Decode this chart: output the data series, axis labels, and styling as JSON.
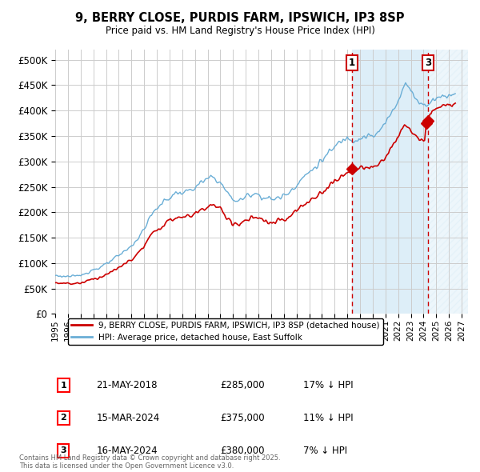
{
  "title1": "9, BERRY CLOSE, PURDIS FARM, IPSWICH, IP3 8SP",
  "title2": "Price paid vs. HM Land Registry's House Price Index (HPI)",
  "ylim": [
    0,
    520000
  ],
  "xlim_start": 1995.0,
  "xlim_end": 2027.5,
  "yticks": [
    0,
    50000,
    100000,
    150000,
    200000,
    250000,
    300000,
    350000,
    400000,
    450000,
    500000
  ],
  "ytick_labels": [
    "£0",
    "£50K",
    "£100K",
    "£150K",
    "£200K",
    "£250K",
    "£300K",
    "£350K",
    "£400K",
    "£450K",
    "£500K"
  ],
  "xticks": [
    1995,
    1996,
    1997,
    1998,
    1999,
    2000,
    2001,
    2002,
    2003,
    2004,
    2005,
    2006,
    2007,
    2008,
    2009,
    2010,
    2011,
    2012,
    2013,
    2014,
    2015,
    2016,
    2017,
    2018,
    2019,
    2020,
    2021,
    2022,
    2023,
    2024,
    2025,
    2026,
    2027
  ],
  "hpi_color": "#6aaed6",
  "sale_color": "#cc0000",
  "marker1_x": 2018.38,
  "marker1_y": 285000,
  "marker2_x": 2024.21,
  "marker2_y": 375000,
  "marker3_x": 2024.38,
  "marker3_y": 380000,
  "vline1_x": 2018.38,
  "vline3_x": 2024.38,
  "shade1_start": 2018.38,
  "shade1_end": 2024.38,
  "shade2_start": 2024.38,
  "shade2_end": 2027.5,
  "legend_line1": "9, BERRY CLOSE, PURDIS FARM, IPSWICH, IP3 8SP (detached house)",
  "legend_line2": "HPI: Average price, detached house, East Suffolk",
  "note1_label": "1",
  "note1_date": "21-MAY-2018",
  "note1_price": "£285,000",
  "note1_hpi": "17% ↓ HPI",
  "note2_label": "2",
  "note2_date": "15-MAR-2024",
  "note2_price": "£375,000",
  "note2_hpi": "11% ↓ HPI",
  "note3_label": "3",
  "note3_date": "16-MAY-2024",
  "note3_price": "£380,000",
  "note3_hpi": "7% ↓ HPI",
  "footer": "Contains HM Land Registry data © Crown copyright and database right 2025.\nThis data is licensed under the Open Government Licence v3.0.",
  "bg_color": "#ffffff",
  "grid_color": "#cccccc",
  "hpi_fill_color": "#ddeef8",
  "hatch_fill_color": "#e8e8e8"
}
